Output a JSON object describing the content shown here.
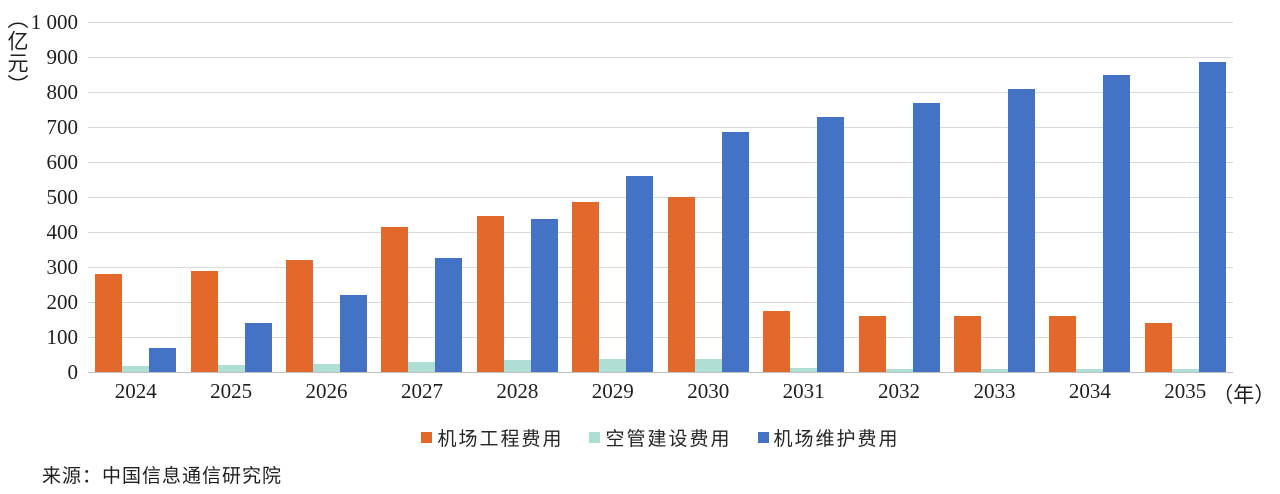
{
  "chart_data": {
    "type": "bar",
    "title": "",
    "y_unit_label": "（亿元）",
    "x_unit_suffix": "（年）",
    "categories": [
      "2024",
      "2025",
      "2026",
      "2027",
      "2028",
      "2029",
      "2030",
      "2031",
      "2032",
      "2033",
      "2034",
      "2035"
    ],
    "series": [
      {
        "name": "机场工程费用",
        "color": "#e2692b",
        "values": [
          280,
          290,
          320,
          415,
          445,
          485,
          500,
          175,
          160,
          160,
          160,
          140
        ]
      },
      {
        "name": "空管建设费用",
        "color": "#aeded4",
        "values": [
          18,
          20,
          23,
          28,
          33,
          37,
          38,
          12,
          10,
          10,
          10,
          9
        ]
      },
      {
        "name": "机场维护费用",
        "color": "#4472c4",
        "values": [
          68,
          140,
          220,
          325,
          438,
          560,
          685,
          730,
          770,
          810,
          850,
          885
        ]
      }
    ],
    "ylim": [
      0,
      1000
    ],
    "y_tick_step": 100,
    "y_tick_labels": [
      "0",
      "100",
      "200",
      "300",
      "400",
      "500",
      "600",
      "700",
      "800",
      "900",
      "1 000"
    ],
    "grid": true,
    "legend_position": "bottom",
    "gridline_color": "#d9d9d9",
    "axis_line_color": "#bfbfbf"
  },
  "source": {
    "text": "来源：中国信息通信研究院"
  }
}
